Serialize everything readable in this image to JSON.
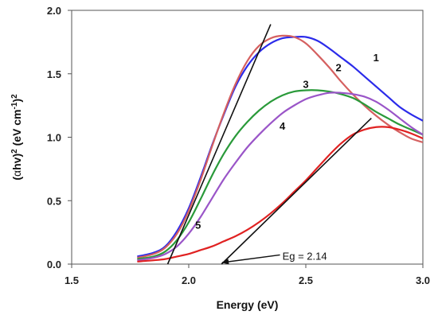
{
  "chart_data": {
    "type": "line",
    "xlabel": "Energy (eV)",
    "ylabel_parts": [
      "(",
      "α",
      "hv)",
      "2",
      " (eV cm",
      "-1",
      ")",
      "2"
    ],
    "xlim": [
      1.5,
      3.0
    ],
    "ylim": [
      0.0,
      2.0
    ],
    "xticks": [
      "1.5",
      "2.0",
      "2.5",
      "3.0"
    ],
    "yticks": [
      "0.0",
      "0.5",
      "1.0",
      "1.5",
      "2.0"
    ],
    "grid": false,
    "series": [
      {
        "name": "1",
        "color": "#2b2bea",
        "x": [
          1.78,
          1.85,
          1.9,
          1.95,
          2.0,
          2.05,
          2.1,
          2.15,
          2.2,
          2.25,
          2.3,
          2.35,
          2.4,
          2.45,
          2.5,
          2.55,
          2.6,
          2.65,
          2.7,
          2.75,
          2.8,
          2.85,
          2.9,
          2.95,
          3.0
        ],
        "y": [
          0.06,
          0.09,
          0.14,
          0.26,
          0.44,
          0.68,
          0.94,
          1.18,
          1.4,
          1.56,
          1.67,
          1.74,
          1.78,
          1.79,
          1.79,
          1.76,
          1.7,
          1.63,
          1.56,
          1.48,
          1.4,
          1.32,
          1.24,
          1.18,
          1.13
        ]
      },
      {
        "name": "2",
        "color": "#d56060",
        "x": [
          1.78,
          1.85,
          1.9,
          1.95,
          2.0,
          2.05,
          2.1,
          2.15,
          2.2,
          2.25,
          2.3,
          2.35,
          2.4,
          2.45,
          2.5,
          2.55,
          2.6,
          2.65,
          2.7,
          2.75,
          2.8,
          2.85,
          2.9,
          2.95,
          3.0
        ],
        "y": [
          0.05,
          0.08,
          0.13,
          0.24,
          0.42,
          0.66,
          0.93,
          1.19,
          1.42,
          1.6,
          1.72,
          1.78,
          1.8,
          1.79,
          1.74,
          1.65,
          1.55,
          1.44,
          1.34,
          1.25,
          1.17,
          1.1,
          1.04,
          0.99,
          0.96
        ]
      },
      {
        "name": "3",
        "color": "#2a9a3a",
        "x": [
          1.78,
          1.85,
          1.9,
          1.95,
          2.0,
          2.05,
          2.1,
          2.15,
          2.2,
          2.25,
          2.3,
          2.35,
          2.4,
          2.45,
          2.5,
          2.55,
          2.6,
          2.65,
          2.7,
          2.75,
          2.8,
          2.85,
          2.9,
          2.95,
          3.0
        ],
        "y": [
          0.04,
          0.06,
          0.1,
          0.19,
          0.33,
          0.51,
          0.7,
          0.87,
          1.01,
          1.12,
          1.21,
          1.28,
          1.33,
          1.36,
          1.37,
          1.37,
          1.36,
          1.34,
          1.31,
          1.26,
          1.2,
          1.15,
          1.1,
          1.06,
          1.02
        ]
      },
      {
        "name": "4",
        "color": "#9a55c8",
        "x": [
          1.78,
          1.85,
          1.9,
          1.95,
          2.0,
          2.05,
          2.1,
          2.15,
          2.2,
          2.25,
          2.3,
          2.35,
          2.4,
          2.45,
          2.5,
          2.55,
          2.6,
          2.65,
          2.7,
          2.75,
          2.8,
          2.85,
          2.9,
          2.95,
          3.0
        ],
        "y": [
          0.03,
          0.05,
          0.08,
          0.14,
          0.24,
          0.37,
          0.52,
          0.67,
          0.8,
          0.92,
          1.02,
          1.11,
          1.19,
          1.25,
          1.3,
          1.33,
          1.35,
          1.35,
          1.34,
          1.32,
          1.28,
          1.22,
          1.15,
          1.08,
          1.02
        ]
      },
      {
        "name": "5",
        "color": "#e02222",
        "x": [
          1.78,
          1.85,
          1.9,
          1.95,
          2.0,
          2.05,
          2.1,
          2.15,
          2.2,
          2.25,
          2.3,
          2.35,
          2.4,
          2.45,
          2.5,
          2.55,
          2.6,
          2.65,
          2.7,
          2.75,
          2.8,
          2.85,
          2.9,
          2.95,
          3.0
        ],
        "y": [
          0.02,
          0.03,
          0.04,
          0.06,
          0.08,
          0.11,
          0.14,
          0.18,
          0.22,
          0.27,
          0.33,
          0.4,
          0.48,
          0.57,
          0.66,
          0.76,
          0.86,
          0.95,
          1.02,
          1.06,
          1.08,
          1.08,
          1.06,
          1.03,
          0.99
        ]
      }
    ],
    "tangent_lines": [
      {
        "x": [
          1.91,
          2.35
        ],
        "y": [
          0.0,
          1.89
        ],
        "color": "#111111"
      },
      {
        "x": [
          2.14,
          2.78
        ],
        "y": [
          0.0,
          1.15
        ],
        "color": "#111111"
      }
    ],
    "curve_labels": [
      {
        "text": "1",
        "x": 2.8,
        "y": 1.6
      },
      {
        "text": "2",
        "x": 2.64,
        "y": 1.52
      },
      {
        "text": "3",
        "x": 2.5,
        "y": 1.39
      },
      {
        "text": "4",
        "x": 2.4,
        "y": 1.06
      },
      {
        "text": "5",
        "x": 2.04,
        "y": 0.28
      }
    ],
    "annotations": [
      {
        "text": "Eg = 2.14",
        "x": 2.4,
        "y": 0.06,
        "arrow_to_x": 2.14,
        "arrow_to_y": 0.0
      }
    ]
  }
}
